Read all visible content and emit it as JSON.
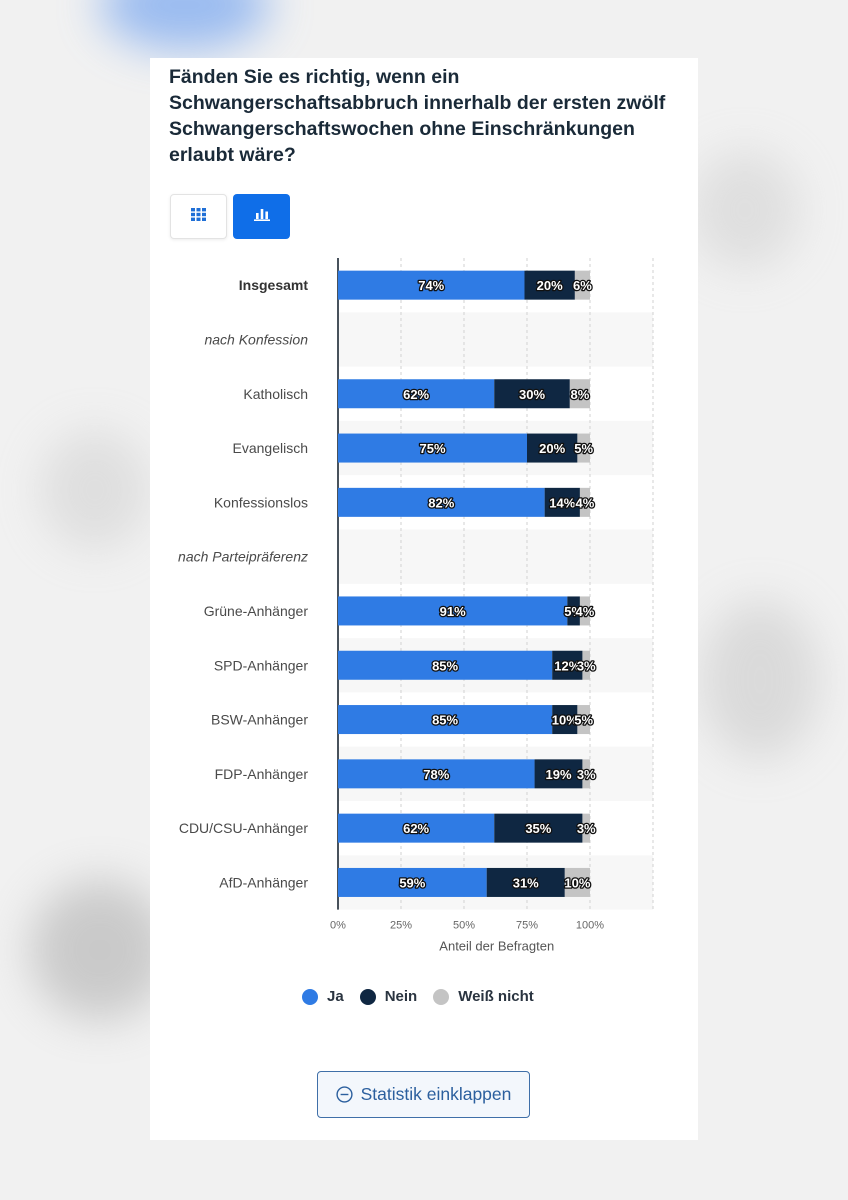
{
  "title": "Fänden Sie es richtig, wenn ein Schwangerschaftsabbruch innerhalb der ersten zwölf Schwangerschaftswochen ohne Einschränkungen erlaubt wäre?",
  "view_buttons": {
    "table_icon": "grid-icon",
    "chart_icon": "bar-chart-icon"
  },
  "colors": {
    "ja": "#2f7be4",
    "nein": "#0f2742",
    "weiss_nicht": "#c4c4c4",
    "active_button": "#0f6ee8"
  },
  "chart_data": {
    "type": "bar",
    "orientation": "horizontal",
    "stacked": true,
    "categories": [
      "Insgesamt",
      "nach Konfession",
      "Katholisch",
      "Evangelisch",
      "Konfessionslos",
      "nach Parteipräferenz",
      "Grüne-Anhänger",
      "SPD-Anhänger",
      "BSW-Anhänger",
      "FDP-Anhänger",
      "CDU/CSU-Anhänger",
      "AfD-Anhänger"
    ],
    "category_styles": [
      "bold",
      "italic",
      "normal",
      "normal",
      "normal",
      "italic",
      "normal",
      "normal",
      "normal",
      "normal",
      "normal",
      "normal"
    ],
    "series": [
      {
        "name": "Ja",
        "values": [
          74,
          null,
          62,
          75,
          82,
          null,
          91,
          85,
          85,
          78,
          62,
          59
        ]
      },
      {
        "name": "Nein",
        "values": [
          20,
          null,
          30,
          20,
          14,
          null,
          5,
          12,
          10,
          19,
          35,
          31
        ]
      },
      {
        "name": "Weiß nicht",
        "values": [
          6,
          null,
          8,
          5,
          4,
          null,
          4,
          3,
          5,
          3,
          3,
          10
        ]
      }
    ],
    "xlabel": "Anteil der Befragten",
    "xticks": [
      "0%",
      "25%",
      "50%",
      "75%",
      "100%"
    ],
    "xlim": [
      0,
      125
    ],
    "grid": true,
    "legend_position": "bottom"
  },
  "legend": [
    "Ja",
    "Nein",
    "Weiß nicht"
  ],
  "collapse_button": {
    "icon": "minus-circle-icon",
    "label": "Statistik einklappen"
  }
}
